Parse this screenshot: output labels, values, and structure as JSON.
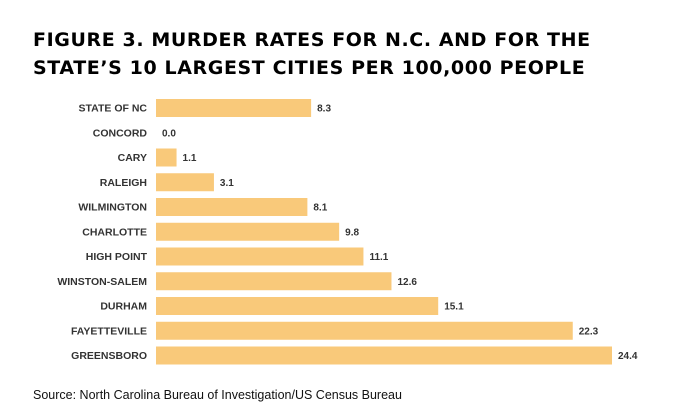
{
  "title": "FIGURE 3. MURDER RATES FOR N.C. AND FOR THE STATE’S 10 LARGEST CITIES PER 100,000 PEOPLE",
  "source": "Source: North Carolina Bureau of Investigation/US Census Bureau",
  "colors": {
    "bar": "#F9C97A",
    "text": "#333333"
  },
  "chart_data": {
    "type": "bar",
    "orientation": "horizontal",
    "title": "FIGURE 3. MURDER RATES FOR N.C. AND FOR THE STATE’S 10 LARGEST CITIES PER 100,000 PEOPLE",
    "xlabel": "",
    "ylabel": "",
    "xlim": [
      0,
      24.4
    ],
    "grid": false,
    "categories": [
      "STATE OF NC",
      "CONCORD",
      "CARY",
      "RALEIGH",
      "WILMINGTON",
      "CHARLOTTE",
      "HIGH POINT",
      "WINSTON-SALEM",
      "DURHAM",
      "FAYETTEVILLE",
      "GREENSBORO"
    ],
    "values": [
      8.3,
      0.0,
      1.1,
      3.1,
      8.1,
      9.8,
      11.1,
      12.6,
      15.1,
      22.3,
      24.4
    ],
    "value_labels": [
      "8.3",
      "0.0",
      "1.1",
      "3.1",
      "8.1",
      "9.8",
      "11.1",
      "12.6",
      "15.1",
      "22.3",
      "24.4"
    ]
  }
}
